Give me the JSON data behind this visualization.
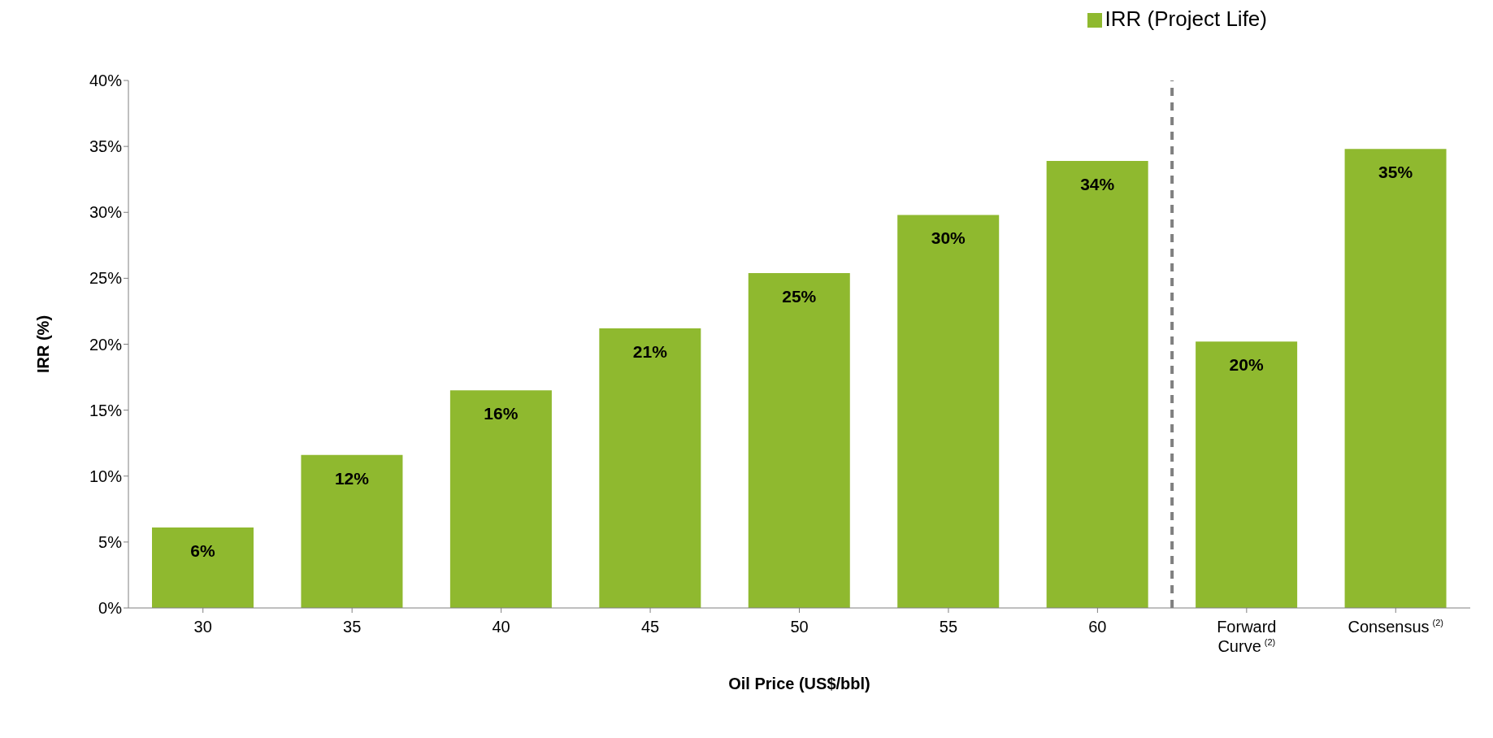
{
  "chart_data": {
    "type": "bar",
    "xlabel": "Oil Price (US$/bbl)",
    "ylabel": "IRR (%)",
    "categories": [
      "30",
      "35",
      "40",
      "45",
      "50",
      "55",
      "60",
      "Forward Curve$^{(2)}$",
      "Consensus$^{(2)}$"
    ],
    "series": [
      {
        "name": "IRR (Project Life)",
        "color": "#8fb92f",
        "values": [
          6.1,
          11.6,
          16.5,
          21.2,
          25.4,
          29.8,
          33.9,
          20.2,
          34.8
        ],
        "value_labels": [
          "6%",
          "12%",
          "16%",
          "21%",
          "25%",
          "30%",
          "34%",
          "20%",
          "35%"
        ]
      }
    ],
    "ylim": [
      0,
      40
    ],
    "yticks": [
      {
        "value": 0,
        "label": "0%"
      },
      {
        "value": 5,
        "label": "5%"
      },
      {
        "value": 10,
        "label": "10%"
      },
      {
        "value": 15,
        "label": "15%"
      },
      {
        "value": 20,
        "label": "20%"
      },
      {
        "value": 25,
        "label": "25%"
      },
      {
        "value": 30,
        "label": "30%"
      },
      {
        "value": 35,
        "label": "35%"
      },
      {
        "value": 40,
        "label": "40%"
      }
    ],
    "grid": false,
    "legend": "top right"
  }
}
